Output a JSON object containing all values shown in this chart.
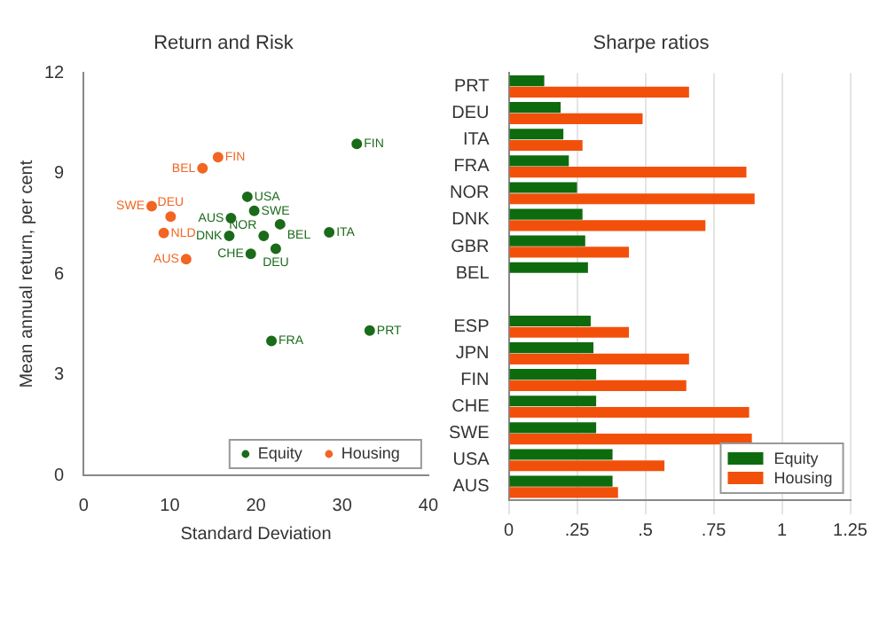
{
  "chart_data": [
    {
      "type": "scatter",
      "title": "Return and Risk",
      "xlabel": "Standard Deviation",
      "ylabel": "Mean annual return, per cent",
      "xlim": [
        0,
        40
      ],
      "ylim": [
        0,
        12
      ],
      "xticks": [
        0,
        10,
        20,
        30,
        40
      ],
      "yticks": [
        0,
        3,
        6,
        9,
        12
      ],
      "grid": false,
      "legend": "bottom right",
      "marker": "circle",
      "series": [
        {
          "name": "Equity",
          "color": "#1a6b1a",
          "x": [
            31.7,
            19.0,
            19.8,
            17.1,
            22.8,
            28.5,
            16.9,
            20.9,
            22.3,
            19.4,
            21.8,
            33.2
          ],
          "values": [
            9.89,
            8.31,
            7.89,
            7.67,
            7.49,
            7.25,
            7.14,
            7.14,
            6.76,
            6.61,
            4.01,
            4.32
          ],
          "value_labels": [
            "FIN",
            "USA",
            "SWE",
            "AUS",
            "BEL",
            "ITA",
            "DNK",
            "NOR",
            "DEU",
            "CHE",
            "FRA",
            "PRT"
          ]
        },
        {
          "name": "Housing",
          "color": "#f26522",
          "x": [
            15.6,
            13.8,
            7.9,
            10.1,
            9.3,
            11.9
          ],
          "values": [
            9.49,
            9.16,
            8.03,
            7.72,
            7.23,
            6.45
          ],
          "value_labels": [
            "FIN",
            "BEL",
            "SWE",
            "DEU",
            "NLD",
            "AUS"
          ]
        }
      ]
    },
    {
      "type": "bar",
      "orientation": "horizontal",
      "title": "Sharpe ratios",
      "xlim": [
        0,
        1.25
      ],
      "xticks": [
        0,
        {
          "value": 0.25,
          "label": ".25"
        },
        {
          "value": 0.5,
          "label": ".5"
        },
        {
          "value": 0.75,
          "label": ".75"
        },
        1,
        1.25
      ],
      "grid": "x",
      "legend": "bottom right",
      "categories": [
        "PRT",
        "DEU",
        "ITA",
        "FRA",
        "NOR",
        "DNK",
        "GBR",
        "BEL",
        null,
        "ESP",
        "JPN",
        "FIN",
        "CHE",
        "SWE",
        "USA",
        "AUS"
      ],
      "series": [
        {
          "name": "Equity",
          "color": "#0d6b0d",
          "values": [
            0.13,
            0.19,
            0.2,
            0.22,
            0.25,
            0.27,
            0.28,
            0.29,
            null,
            0.3,
            0.31,
            0.32,
            0.32,
            0.32,
            0.38,
            0.38
          ]
        },
        {
          "name": "Housing",
          "color": "#f2500a",
          "values": [
            0.66,
            0.49,
            0.27,
            0.87,
            0.9,
            0.72,
            0.44,
            null,
            null,
            0.44,
            0.66,
            0.65,
            0.88,
            0.89,
            0.57,
            0.4
          ]
        }
      ]
    }
  ]
}
